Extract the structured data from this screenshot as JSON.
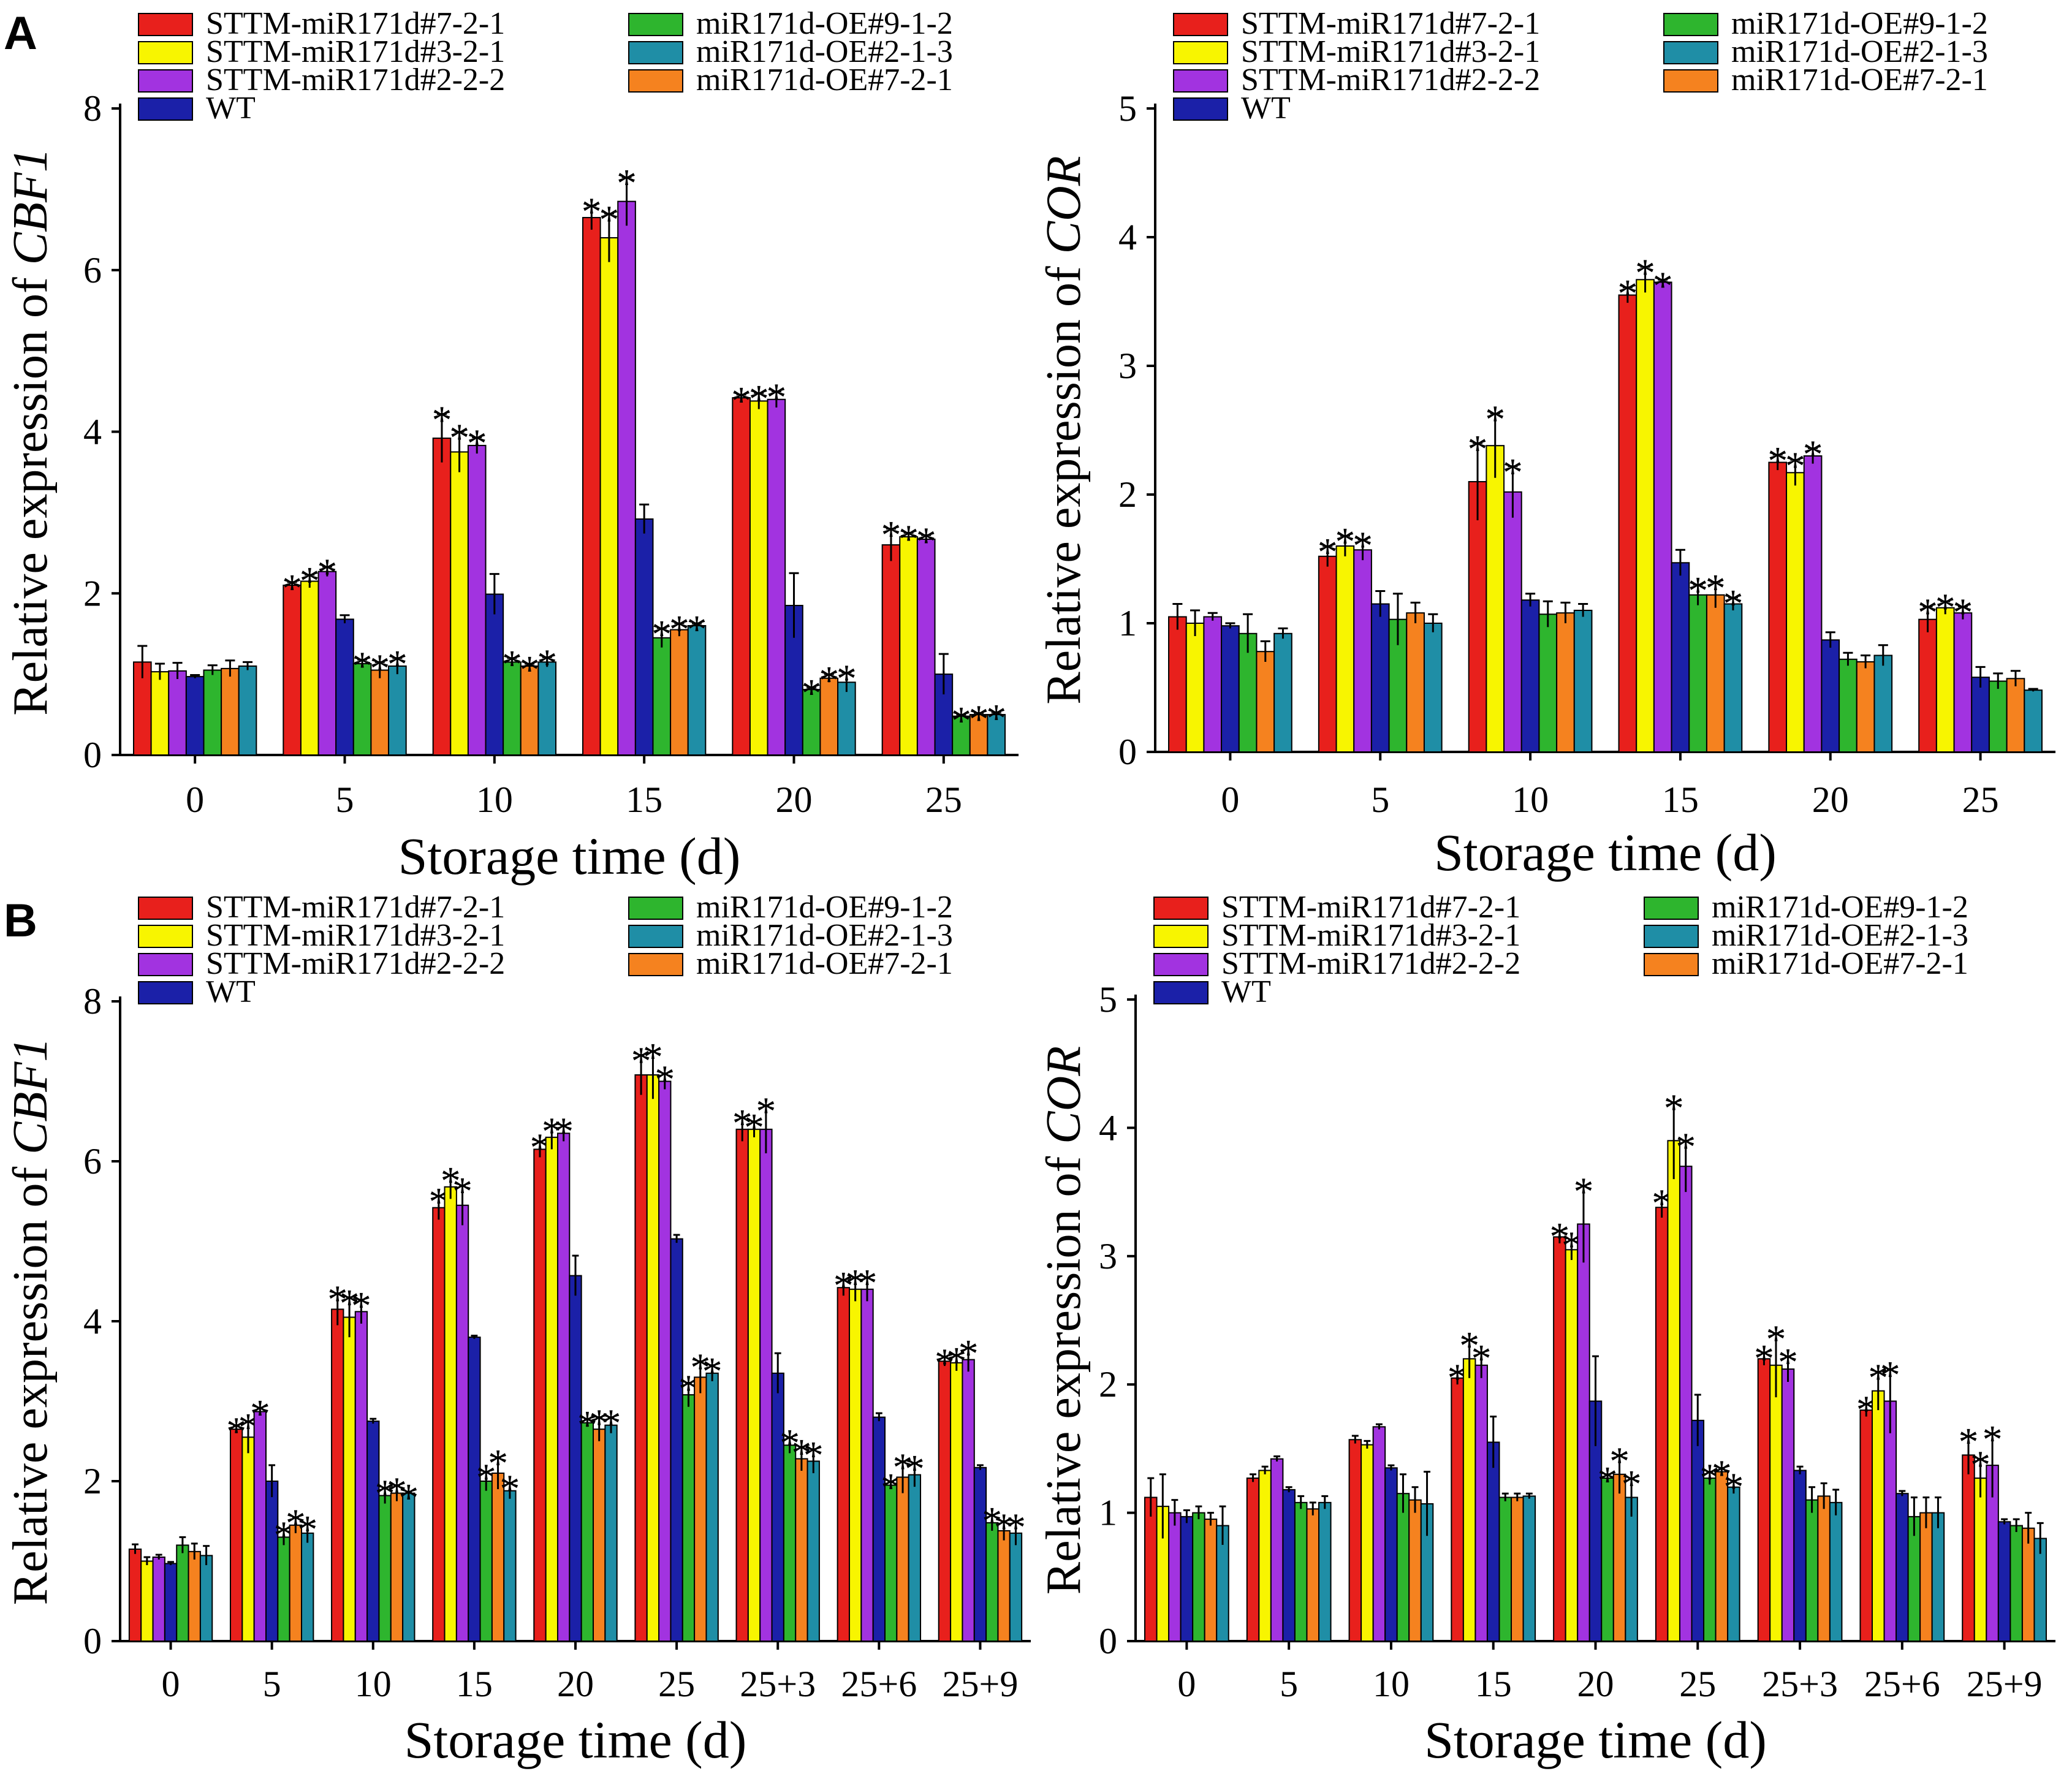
{
  "panel_labels": [
    "A",
    "B"
  ],
  "colors": {
    "STTM-miR171d#7-2-1": "#e8201c",
    "STTM-miR171d#3-2-1": "#f8f500",
    "STTM-miR171d#2-2-2": "#a233e0",
    "WT": "#1b20a8",
    "miR171d-OE#9-1-2": "#2eb52e",
    "miR171d-OE#2-1-3": "#1f8ea6",
    "miR171d-OE#7-2-1": "#f5821f"
  },
  "legend": {
    "left_column": [
      "STTM-miR171d#7-2-1",
      "STTM-miR171d#3-2-1",
      "STTM-miR171d#2-2-2",
      "WT"
    ],
    "right_column": [
      "miR171d-OE#9-1-2",
      "miR171d-OE#2-1-3",
      "miR171d-OE#7-2-1"
    ]
  },
  "chart_data": [
    {
      "panel": "A",
      "type": "bar",
      "xlabel": "Storage time (d)",
      "ylabel_prefix": "Relative expression of ",
      "ylabel_gene": "CBF1",
      "ylim": [
        0,
        8
      ],
      "yticks": [
        0,
        2,
        4,
        6,
        8
      ],
      "categories": [
        "0",
        "5",
        "10",
        "15",
        "20",
        "25"
      ],
      "series": [
        {
          "name": "STTM-miR171d#7-2-1",
          "values": [
            1.15,
            2.1,
            3.92,
            6.65,
            4.42,
            2.6
          ],
          "errors": [
            0.2,
            0.04,
            0.3,
            0.15,
            0.04,
            0.2
          ],
          "stars": [
            "",
            "*",
            "*",
            "*",
            "*",
            "*"
          ]
        },
        {
          "name": "STTM-miR171d#3-2-1",
          "values": [
            1.03,
            2.15,
            3.75,
            6.4,
            4.38,
            2.7
          ],
          "errors": [
            0.1,
            0.08,
            0.25,
            0.3,
            0.1,
            0.05
          ],
          "stars": [
            "",
            "*",
            "*",
            "*",
            "*",
            "*"
          ]
        },
        {
          "name": "STTM-miR171d#2-2-2",
          "values": [
            1.04,
            2.27,
            3.83,
            6.85,
            4.4,
            2.67
          ],
          "errors": [
            0.1,
            0.06,
            0.1,
            0.3,
            0.1,
            0.05
          ],
          "stars": [
            "",
            "*",
            "*",
            "*",
            "*",
            "*"
          ]
        },
        {
          "name": "WT",
          "values": [
            0.97,
            1.68,
            1.99,
            2.92,
            1.85,
            1.0
          ],
          "errors": [
            0.02,
            0.05,
            0.25,
            0.18,
            0.4,
            0.25
          ],
          "stars": [
            "",
            "",
            "",
            "",
            "",
            ""
          ]
        },
        {
          "name": "miR171d-OE#9-1-2",
          "values": [
            1.05,
            1.13,
            1.15,
            1.45,
            0.81,
            0.48
          ],
          "errors": [
            0.06,
            0.05,
            0.05,
            0.12,
            0.03,
            0.02
          ],
          "stars": [
            "",
            "*",
            "*",
            "*",
            "*",
            "*"
          ]
        },
        {
          "name": "miR171d-OE#7-2-1",
          "values": [
            1.07,
            1.05,
            1.1,
            1.55,
            0.95,
            0.5
          ],
          "errors": [
            0.1,
            0.1,
            0.03,
            0.08,
            0.05,
            0.02
          ],
          "stars": [
            "",
            "*",
            "*",
            "*",
            "*",
            "*"
          ]
        },
        {
          "name": "miR171d-OE#2-1-3",
          "values": [
            1.1,
            1.1,
            1.15,
            1.6,
            0.9,
            0.5
          ],
          "errors": [
            0.05,
            0.1,
            0.06,
            0.03,
            0.12,
            0.03
          ],
          "stars": [
            "",
            "*",
            "*",
            "*",
            "*",
            "*"
          ]
        }
      ]
    },
    {
      "panel": "A",
      "type": "bar",
      "xlabel": "Storage time (d)",
      "ylabel_prefix": "Relative expression of ",
      "ylabel_gene": "COR",
      "ylim": [
        0,
        5
      ],
      "yticks": [
        0,
        1,
        2,
        3,
        4,
        5
      ],
      "categories": [
        "0",
        "5",
        "10",
        "15",
        "20",
        "25"
      ],
      "series": [
        {
          "name": "STTM-miR171d#7-2-1",
          "values": [
            1.05,
            1.52,
            2.1,
            3.55,
            2.25,
            1.03
          ],
          "errors": [
            0.1,
            0.08,
            0.3,
            0.06,
            0.06,
            0.1
          ],
          "stars": [
            "",
            "*",
            "*",
            "*",
            "*",
            "*"
          ]
        },
        {
          "name": "STTM-miR171d#3-2-1",
          "values": [
            1.0,
            1.6,
            2.38,
            3.67,
            2.17,
            1.12
          ],
          "errors": [
            0.1,
            0.08,
            0.25,
            0.1,
            0.1,
            0.05
          ],
          "stars": [
            "",
            "*",
            "*",
            "*",
            "*",
            "*"
          ]
        },
        {
          "name": "STTM-miR171d#2-2-2",
          "values": [
            1.05,
            1.57,
            2.02,
            3.65,
            2.3,
            1.08
          ],
          "errors": [
            0.03,
            0.08,
            0.2,
            0.02,
            0.06,
            0.05
          ],
          "stars": [
            "",
            "*",
            "*",
            "*",
            "*",
            "*"
          ]
        },
        {
          "name": "WT",
          "values": [
            0.98,
            1.15,
            1.18,
            1.47,
            0.87,
            0.58
          ],
          "errors": [
            0.02,
            0.1,
            0.05,
            0.1,
            0.06,
            0.08
          ],
          "stars": [
            "",
            "",
            "",
            "",
            "",
            ""
          ]
        },
        {
          "name": "miR171d-OE#9-1-2",
          "values": [
            0.92,
            1.03,
            1.07,
            1.22,
            0.72,
            0.55
          ],
          "errors": [
            0.15,
            0.2,
            0.1,
            0.08,
            0.05,
            0.06
          ],
          "stars": [
            "",
            "",
            "",
            "*",
            "",
            ""
          ]
        },
        {
          "name": "miR171d-OE#7-2-1",
          "values": [
            0.78,
            1.08,
            1.08,
            1.22,
            0.7,
            0.57
          ],
          "errors": [
            0.08,
            0.08,
            0.08,
            0.1,
            0.05,
            0.06
          ],
          "stars": [
            "",
            "",
            "",
            "*",
            "",
            ""
          ]
        },
        {
          "name": "miR171d-OE#2-1-3",
          "values": [
            0.92,
            1.0,
            1.1,
            1.15,
            0.75,
            0.48
          ],
          "errors": [
            0.04,
            0.07,
            0.05,
            0.05,
            0.08,
            0.01
          ],
          "stars": [
            "",
            "",
            "",
            "*",
            "",
            ""
          ]
        }
      ]
    },
    {
      "panel": "B",
      "type": "bar",
      "xlabel": "Storage time (d)",
      "ylabel_prefix": "Relative expression of ",
      "ylabel_gene": "CBF1",
      "ylim": [
        0,
        8
      ],
      "yticks": [
        0,
        2,
        4,
        6,
        8
      ],
      "categories": [
        "0",
        "5",
        "10",
        "15",
        "20",
        "25",
        "25+3",
        "25+6",
        "25+9"
      ],
      "series": [
        {
          "name": "STTM-miR171d#7-2-1",
          "values": [
            1.15,
            2.65,
            4.15,
            5.42,
            6.15,
            7.08,
            6.4,
            4.42,
            3.5
          ],
          "errors": [
            0.06,
            0.05,
            0.2,
            0.15,
            0.1,
            0.25,
            0.15,
            0.1,
            0.06
          ],
          "stars": [
            "",
            "*",
            "*",
            "*",
            "*",
            "*",
            "*",
            "*",
            "*"
          ]
        },
        {
          "name": "STTM-miR171d#3-2-1",
          "values": [
            1.0,
            2.55,
            4.05,
            5.68,
            6.3,
            7.08,
            6.4,
            4.4,
            3.48
          ],
          "errors": [
            0.05,
            0.2,
            0.25,
            0.15,
            0.15,
            0.3,
            0.1,
            0.15,
            0.1
          ],
          "stars": [
            "",
            "*",
            "*",
            "*",
            "*",
            "*",
            "*",
            "*",
            "*"
          ]
        },
        {
          "name": "STTM-miR171d#2-2-2",
          "values": [
            1.05,
            2.87,
            4.12,
            5.45,
            6.35,
            7.0,
            6.4,
            4.4,
            3.52
          ],
          "errors": [
            0.03,
            0.05,
            0.15,
            0.25,
            0.1,
            0.1,
            0.3,
            0.15,
            0.15
          ],
          "stars": [
            "",
            "*",
            "*",
            "*",
            "*",
            "*",
            "*",
            "*",
            "*"
          ]
        },
        {
          "name": "WT",
          "values": [
            0.97,
            2.0,
            2.75,
            3.8,
            4.57,
            5.03,
            3.35,
            2.8,
            2.17
          ],
          "errors": [
            0.02,
            0.2,
            0.03,
            0.02,
            0.25,
            0.05,
            0.25,
            0.05,
            0.03
          ],
          "stars": [
            "",
            "",
            "",
            "",
            "",
            "",
            "",
            "",
            ""
          ]
        },
        {
          "name": "miR171d-OE#9-1-2",
          "values": [
            1.2,
            1.3,
            1.82,
            2.0,
            2.73,
            3.08,
            2.45,
            1.95,
            1.48
          ],
          "errors": [
            0.1,
            0.1,
            0.1,
            0.12,
            0.05,
            0.15,
            0.1,
            0.05,
            0.1
          ],
          "stars": [
            "",
            "*",
            "*",
            "*",
            "*",
            "*",
            "*",
            "*",
            "*"
          ]
        },
        {
          "name": "miR171d-OE#7-2-1",
          "values": [
            1.12,
            1.45,
            1.85,
            2.1,
            2.65,
            3.3,
            2.28,
            2.05,
            1.38
          ],
          "errors": [
            0.1,
            0.1,
            0.1,
            0.2,
            0.15,
            0.2,
            0.15,
            0.2,
            0.12
          ],
          "stars": [
            "",
            "*",
            "*",
            "*",
            "*",
            "*",
            "*",
            "*",
            "*"
          ]
        },
        {
          "name": "miR171d-OE#2-1-3",
          "values": [
            1.07,
            1.35,
            1.85,
            1.88,
            2.7,
            3.35,
            2.25,
            2.08,
            1.35
          ],
          "errors": [
            0.12,
            0.12,
            0.02,
            0.1,
            0.1,
            0.1,
            0.15,
            0.15,
            0.15
          ],
          "stars": [
            "",
            "*",
            "*",
            "*",
            "*",
            "*",
            "*",
            "*",
            "*"
          ]
        }
      ]
    },
    {
      "panel": "B",
      "type": "bar",
      "xlabel": "Storage time (d)",
      "ylabel_prefix": "Relative expression of ",
      "ylabel_gene": "COR",
      "ylim": [
        0,
        5
      ],
      "yticks": [
        0,
        1,
        2,
        3,
        4,
        5
      ],
      "categories": [
        "0",
        "5",
        "10",
        "15",
        "20",
        "25",
        "25+3",
        "25+6",
        "25+9"
      ],
      "series": [
        {
          "name": "STTM-miR171d#7-2-1",
          "values": [
            1.12,
            1.27,
            1.57,
            2.05,
            3.15,
            3.38,
            2.2,
            1.8,
            1.45
          ],
          "errors": [
            0.15,
            0.03,
            0.03,
            0.05,
            0.05,
            0.08,
            0.05,
            0.05,
            0.15
          ],
          "stars": [
            "",
            "",
            "",
            "*",
            "*",
            "*",
            "*",
            "*",
            "*"
          ]
        },
        {
          "name": "STTM-miR171d#3-2-1",
          "values": [
            1.05,
            1.33,
            1.53,
            2.2,
            3.05,
            3.9,
            2.15,
            1.95,
            1.27
          ],
          "errors": [
            0.25,
            0.03,
            0.03,
            0.15,
            0.08,
            0.3,
            0.25,
            0.15,
            0.15
          ],
          "stars": [
            "",
            "",
            "",
            "*",
            "*",
            "*",
            "*",
            "*",
            "*"
          ]
        },
        {
          "name": "STTM-miR171d#2-2-2",
          "values": [
            1.0,
            1.42,
            1.67,
            2.15,
            3.25,
            3.7,
            2.12,
            1.87,
            1.37
          ],
          "errors": [
            0.1,
            0.02,
            0.02,
            0.1,
            0.3,
            0.2,
            0.1,
            0.25,
            0.25
          ],
          "stars": [
            "",
            "",
            "",
            "*",
            "*",
            "*",
            "*",
            "*",
            "*"
          ]
        },
        {
          "name": "WT",
          "values": [
            0.97,
            1.18,
            1.35,
            1.55,
            1.87,
            1.72,
            1.33,
            1.15,
            0.93
          ],
          "errors": [
            0.05,
            0.02,
            0.02,
            0.2,
            0.35,
            0.2,
            0.03,
            0.02,
            0.02
          ],
          "stars": [
            "",
            "",
            "",
            "",
            "",
            "",
            "",
            "",
            ""
          ]
        },
        {
          "name": "miR171d-OE#9-1-2",
          "values": [
            1.0,
            1.08,
            1.15,
            1.12,
            1.27,
            1.27,
            1.1,
            0.97,
            0.9
          ],
          "errors": [
            0.05,
            0.05,
            0.15,
            0.03,
            0.03,
            0.05,
            0.1,
            0.15,
            0.05
          ],
          "stars": [
            "",
            "",
            "",
            "",
            "*",
            "*",
            "",
            "",
            ""
          ]
        },
        {
          "name": "miR171d-OE#7-2-1",
          "values": [
            0.95,
            1.03,
            1.1,
            1.12,
            1.3,
            1.32,
            1.13,
            1.0,
            0.88
          ],
          "errors": [
            0.05,
            0.05,
            0.1,
            0.03,
            0.15,
            0.03,
            0.1,
            0.12,
            0.12
          ],
          "stars": [
            "",
            "",
            "",
            "",
            "*",
            "*",
            "",
            "",
            ""
          ]
        },
        {
          "name": "miR171d-OE#2-1-3",
          "values": [
            0.9,
            1.08,
            1.07,
            1.13,
            1.12,
            1.2,
            1.08,
            1.0,
            0.8
          ],
          "errors": [
            0.15,
            0.05,
            0.25,
            0.02,
            0.15,
            0.05,
            0.1,
            0.12,
            0.12
          ],
          "stars": [
            "",
            "",
            "",
            "",
            "*",
            "*",
            "",
            "",
            ""
          ]
        }
      ]
    }
  ]
}
